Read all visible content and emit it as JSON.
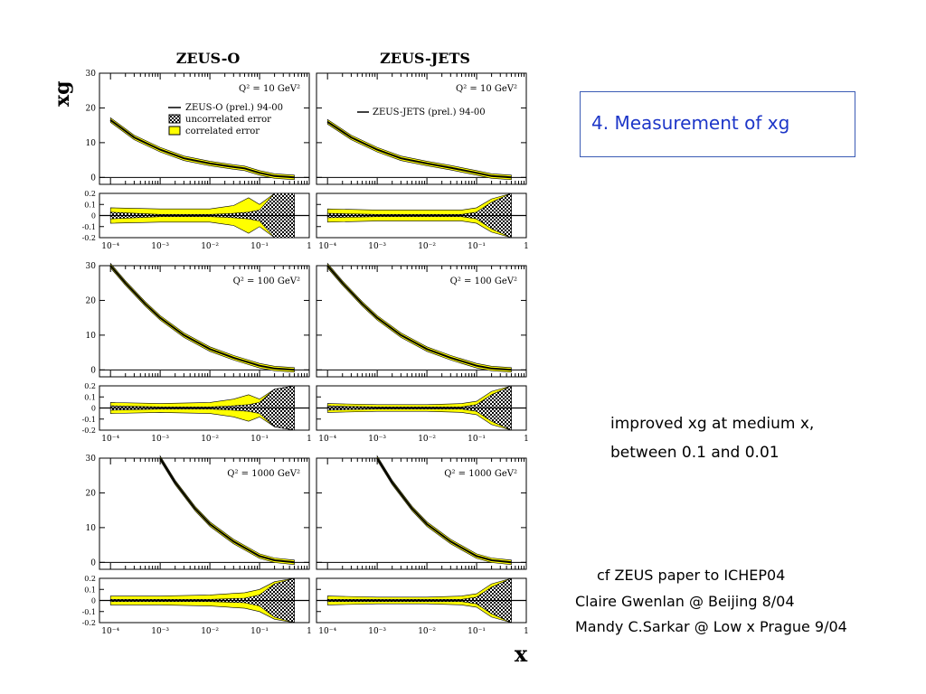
{
  "slide": {
    "title": "4. Measurement of xg",
    "note_lines": [
      "improved xg at medium x,",
      "between 0.1 and 0.01"
    ],
    "credit_lines": [
      "cf  ZEUS paper to ICHEP04",
      "Claire Gwenlan @ Beijing 8/04",
      "Mandy C.Sarkar @ Low x Prague 9/04"
    ]
  },
  "figure": {
    "column_titles": [
      "ZEUS-O",
      "ZEUS-JETS"
    ],
    "y_axis_label": "xg",
    "x_axis_label": "x",
    "legend_left": [
      "ZEUS-O (prel.) 94-00",
      "uncorrelated error",
      "correlated error"
    ],
    "legend_right": [
      "ZEUS-JETS (prel.) 94-00"
    ],
    "colors": {
      "correlated": "#ffff00",
      "uncorrelated": "#000000",
      "curve": "#000000"
    }
  },
  "chart_data": [
    {
      "type": "line",
      "panel": "ZEUS-O, Q2 = 10",
      "q2_label": "Q² = 10 GeV²",
      "xscale": "log",
      "xlim": [
        6e-05,
        1
      ],
      "ylim": [
        -2,
        30
      ],
      "y_ticks": [
        "30",
        "20",
        "10",
        "0"
      ],
      "x": [
        0.0001,
        0.0003,
        0.001,
        0.003,
        0.01,
        0.03,
        0.05,
        0.1,
        0.2,
        0.5
      ],
      "series": [
        {
          "values": [
            16.5,
            11.5,
            8,
            5.5,
            4,
            3,
            2.6,
            1.3,
            0.4,
            0
          ]
        }
      ],
      "x_tick_labels": [
        "10⁻⁴",
        "10⁻³",
        "10⁻²",
        "10⁻¹",
        "1"
      ],
      "ratio": {
        "ylim": [
          -0.2,
          0.2
        ],
        "y_ticks": [
          "0.2",
          "0.1",
          "0",
          "-0.1",
          "-0.2"
        ],
        "x": [
          0.0001,
          0.001,
          0.01,
          0.03,
          0.06,
          0.1,
          0.2,
          0.5
        ],
        "correlated": [
          0.07,
          0.06,
          0.06,
          0.09,
          0.16,
          0.1,
          0.2,
          0.2
        ],
        "uncorrelated": [
          0.03,
          0.01,
          0.01,
          0.02,
          0.03,
          0.05,
          0.2,
          0.2
        ]
      }
    },
    {
      "type": "line",
      "panel": "ZEUS-JETS, Q2 = 10",
      "q2_label": "Q² = 10 GeV²",
      "xscale": "log",
      "xlim": [
        6e-05,
        1
      ],
      "ylim": [
        -2,
        30
      ],
      "y_ticks": [
        "30",
        "20",
        "10",
        "0"
      ],
      "x": [
        0.0001,
        0.0003,
        0.001,
        0.003,
        0.01,
        0.03,
        0.1,
        0.2,
        0.5
      ],
      "series": [
        {
          "values": [
            16,
            11.5,
            8,
            5.5,
            4,
            2.8,
            1.3,
            0.4,
            0
          ]
        }
      ],
      "x_tick_labels": [
        "10⁻⁴",
        "10⁻³",
        "10⁻²",
        "10⁻¹",
        "1"
      ],
      "ratio": {
        "ylim": [
          -0.2,
          0.2
        ],
        "y_ticks": [
          "0.2",
          "0.1",
          "0",
          "-0.1",
          "-0.2"
        ],
        "x": [
          0.0001,
          0.001,
          0.01,
          0.05,
          0.1,
          0.2,
          0.5
        ],
        "correlated": [
          0.06,
          0.05,
          0.05,
          0.05,
          0.07,
          0.15,
          0.2
        ],
        "uncorrelated": [
          0.02,
          0.01,
          0.01,
          0.01,
          0.03,
          0.12,
          0.2
        ]
      }
    },
    {
      "type": "line",
      "panel": "ZEUS-O, Q2 = 100",
      "q2_label": "Q² = 100 GeV²",
      "xscale": "log",
      "xlim": [
        6e-05,
        1
      ],
      "ylim": [
        -2,
        30
      ],
      "y_ticks": [
        "30",
        "20",
        "10",
        "0"
      ],
      "x": [
        0.0001,
        0.0002,
        0.0005,
        0.001,
        0.003,
        0.01,
        0.03,
        0.1,
        0.2,
        0.5
      ],
      "series": [
        {
          "values": [
            30,
            25,
            19,
            15,
            10,
            6,
            3.5,
            1.2,
            0.4,
            0
          ]
        }
      ],
      "x_tick_labels": [
        "10⁻⁴",
        "10⁻³",
        "10⁻²",
        "10⁻¹",
        "1"
      ],
      "ratio": {
        "ylim": [
          -0.2,
          0.2
        ],
        "y_ticks": [
          "0.2",
          "0.1",
          "0",
          "-0.1",
          "-0.2"
        ],
        "x": [
          0.0001,
          0.001,
          0.01,
          0.03,
          0.06,
          0.1,
          0.2,
          0.5
        ],
        "correlated": [
          0.05,
          0.04,
          0.05,
          0.08,
          0.12,
          0.08,
          0.17,
          0.2
        ],
        "uncorrelated": [
          0.02,
          0.01,
          0.01,
          0.02,
          0.03,
          0.05,
          0.17,
          0.2
        ]
      }
    },
    {
      "type": "line",
      "panel": "ZEUS-JETS, Q2 = 100",
      "q2_label": "Q² = 100 GeV²",
      "xscale": "log",
      "xlim": [
        6e-05,
        1
      ],
      "ylim": [
        -2,
        30
      ],
      "y_ticks": [
        "30",
        "20",
        "10",
        "0"
      ],
      "x": [
        0.0001,
        0.0002,
        0.0005,
        0.001,
        0.003,
        0.01,
        0.03,
        0.1,
        0.2,
        0.5
      ],
      "series": [
        {
          "values": [
            30,
            25,
            19,
            15,
            10,
            6,
            3.5,
            1.2,
            0.4,
            0
          ]
        }
      ],
      "x_tick_labels": [
        "10⁻⁴",
        "10⁻³",
        "10⁻²",
        "10⁻¹",
        "1"
      ],
      "ratio": {
        "ylim": [
          -0.2,
          0.2
        ],
        "y_ticks": [
          "0.2",
          "0.1",
          "0",
          "-0.1",
          "-0.2"
        ],
        "x": [
          0.0001,
          0.001,
          0.01,
          0.05,
          0.1,
          0.2,
          0.5
        ],
        "correlated": [
          0.04,
          0.03,
          0.03,
          0.04,
          0.06,
          0.15,
          0.2
        ],
        "uncorrelated": [
          0.02,
          0.01,
          0.01,
          0.01,
          0.03,
          0.12,
          0.2
        ]
      }
    },
    {
      "type": "line",
      "panel": "ZEUS-O, Q2 = 1000",
      "q2_label": "Q² = 1000 GeV²",
      "xscale": "log",
      "xlim": [
        6e-05,
        1
      ],
      "ylim": [
        -2,
        30
      ],
      "y_ticks": [
        "30",
        "20",
        "10",
        "0"
      ],
      "x": [
        0.001,
        0.002,
        0.005,
        0.01,
        0.03,
        0.1,
        0.2,
        0.5
      ],
      "series": [
        {
          "values": [
            30,
            23,
            15.5,
            11,
            6,
            1.8,
            0.6,
            0
          ]
        }
      ],
      "x_tick_labels": [
        "10⁻⁴",
        "10⁻³",
        "10⁻²",
        "10⁻¹",
        "1"
      ],
      "ratio": {
        "ylim": [
          -0.2,
          0.2
        ],
        "y_ticks": [
          "0.2",
          "0.1",
          "0",
          "-0.1",
          "-0.2"
        ],
        "x": [
          0.0001,
          0.001,
          0.01,
          0.05,
          0.1,
          0.2,
          0.5
        ],
        "correlated": [
          0.04,
          0.04,
          0.05,
          0.07,
          0.1,
          0.17,
          0.2
        ],
        "uncorrelated": [
          0.01,
          0.01,
          0.01,
          0.02,
          0.05,
          0.15,
          0.2
        ]
      }
    },
    {
      "type": "line",
      "panel": "ZEUS-JETS, Q2 = 1000",
      "q2_label": "Q² = 1000 GeV²",
      "xscale": "log",
      "xlim": [
        6e-05,
        1
      ],
      "ylim": [
        -2,
        30
      ],
      "y_ticks": [
        "30",
        "20",
        "10",
        "0"
      ],
      "x": [
        0.001,
        0.002,
        0.005,
        0.01,
        0.03,
        0.1,
        0.2,
        0.5
      ],
      "series": [
        {
          "values": [
            30,
            23,
            15.5,
            11,
            6,
            1.8,
            0.6,
            0
          ]
        }
      ],
      "x_tick_labels": [
        "10⁻⁴",
        "10⁻³",
        "10⁻²",
        "10⁻¹",
        "1"
      ],
      "ratio": {
        "ylim": [
          -0.2,
          0.2
        ],
        "y_ticks": [
          "0.2",
          "0.1",
          "0",
          "-0.1",
          "-0.2"
        ],
        "x": [
          0.0001,
          0.001,
          0.01,
          0.05,
          0.1,
          0.2,
          0.5
        ],
        "correlated": [
          0.04,
          0.03,
          0.03,
          0.04,
          0.06,
          0.15,
          0.2
        ],
        "uncorrelated": [
          0.01,
          0.01,
          0.01,
          0.01,
          0.03,
          0.12,
          0.2
        ]
      }
    }
  ]
}
